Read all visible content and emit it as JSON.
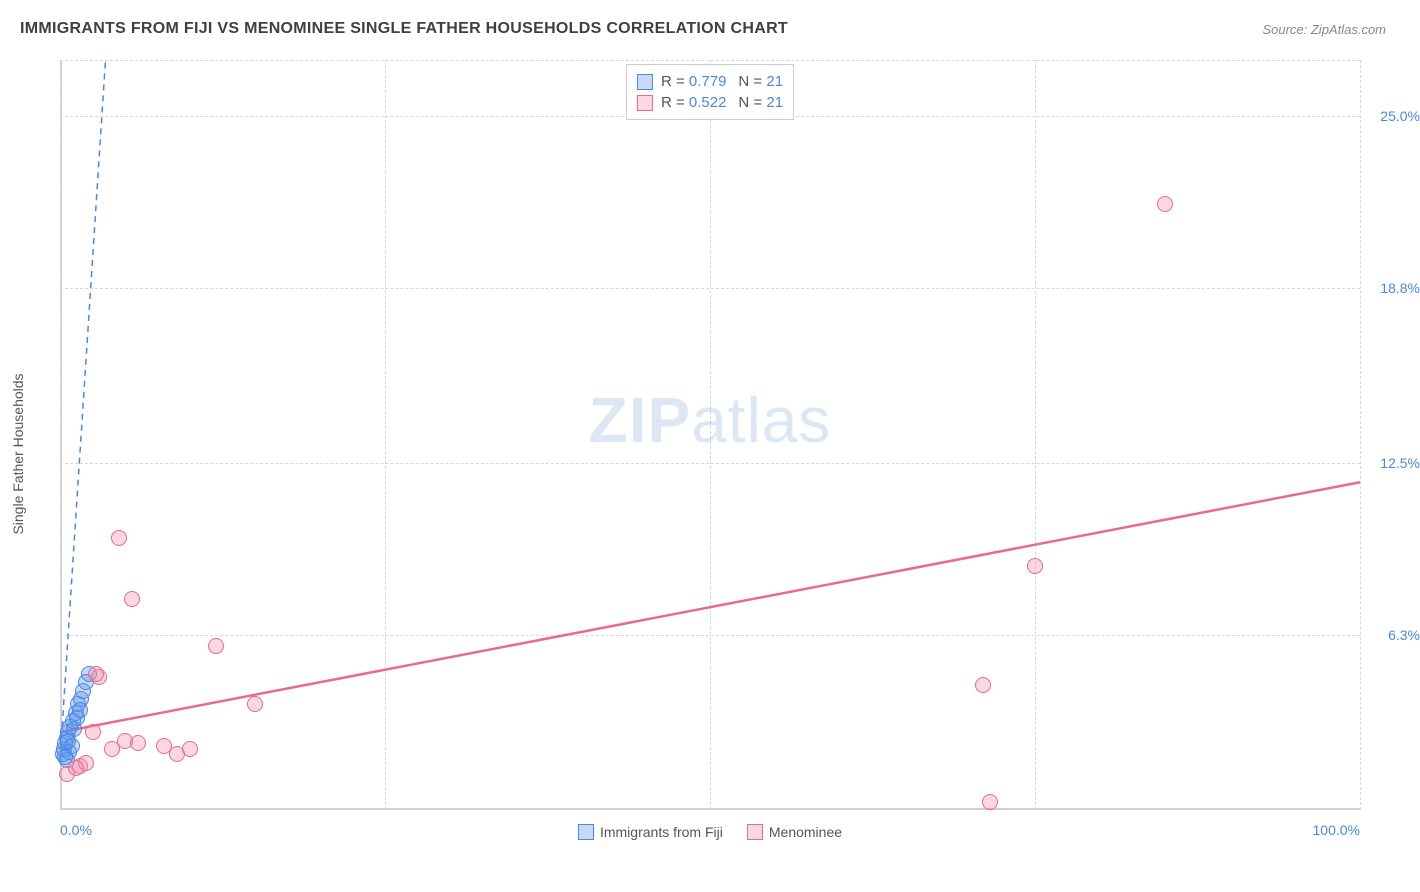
{
  "title": "IMMIGRANTS FROM FIJI VS MENOMINEE SINGLE FATHER HOUSEHOLDS CORRELATION CHART",
  "source": "Source: ZipAtlas.com",
  "y_axis_label": "Single Father Households",
  "watermark_bold": "ZIP",
  "watermark_light": "atlas",
  "colors": {
    "series1_fill": "rgba(93, 148, 232, 0.35)",
    "series1_stroke": "#4a86e8",
    "series2_fill": "rgba(242, 140, 168, 0.35)",
    "series2_stroke": "#e86a8d",
    "axis_label": "#4a86e8",
    "grid": "#d8d8d8",
    "text": "#555555",
    "trend1": "#4a86e8",
    "trend2": "#e86a8d"
  },
  "chart": {
    "type": "scatter",
    "x_domain": [
      0,
      100
    ],
    "y_domain": [
      0,
      27
    ],
    "x_ticks": [
      {
        "v": 0,
        "label": "0.0%",
        "align": "left"
      },
      {
        "v": 100,
        "label": "100.0%",
        "align": "right"
      }
    ],
    "x_gridlines": [
      0,
      25,
      50,
      75,
      100
    ],
    "y_ticks": [
      {
        "v": 6.3,
        "label": "6.3%"
      },
      {
        "v": 12.5,
        "label": "12.5%"
      },
      {
        "v": 18.8,
        "label": "18.8%"
      },
      {
        "v": 25.0,
        "label": "25.0%"
      }
    ],
    "y_gridlines": [
      6.3,
      12.5,
      18.8,
      25.0,
      27
    ],
    "point_radius": 8,
    "series": [
      {
        "id": "fiji",
        "name": "Immigrants from Fiji",
        "fill": "rgba(93, 148, 232, 0.35)",
        "stroke": "#4a86e8",
        "R": "0.779",
        "N": "21",
        "points": [
          [
            0.2,
            2.0
          ],
          [
            0.3,
            2.2
          ],
          [
            0.4,
            2.4
          ],
          [
            0.5,
            2.6
          ],
          [
            0.6,
            2.8
          ],
          [
            0.8,
            3.0
          ],
          [
            1.0,
            3.2
          ],
          [
            1.2,
            3.5
          ],
          [
            1.4,
            3.8
          ],
          [
            1.6,
            4.0
          ],
          [
            1.8,
            4.3
          ],
          [
            2.0,
            4.6
          ],
          [
            2.2,
            4.9
          ],
          [
            0.5,
            1.8
          ],
          [
            0.7,
            2.1
          ],
          [
            0.9,
            2.3
          ],
          [
            1.1,
            2.9
          ],
          [
            1.3,
            3.3
          ],
          [
            1.5,
            3.6
          ],
          [
            0.4,
            1.9
          ],
          [
            0.6,
            2.5
          ]
        ],
        "trend": {
          "x1": 0,
          "y1": 1.8,
          "x2": 3.5,
          "y2": 27,
          "dash": true,
          "w": 1.5
        }
      },
      {
        "id": "menominee",
        "name": "Menominee",
        "fill": "rgba(242, 140, 168, 0.35)",
        "stroke": "#e86a8d",
        "R": "0.522",
        "N": "21",
        "points": [
          [
            0.5,
            1.3
          ],
          [
            1.5,
            1.6
          ],
          [
            2.0,
            1.7
          ],
          [
            3.0,
            4.8
          ],
          [
            4.0,
            2.2
          ],
          [
            5.0,
            2.5
          ],
          [
            6.0,
            2.4
          ],
          [
            8.0,
            2.3
          ],
          [
            9.0,
            2.0
          ],
          [
            10.0,
            2.2
          ],
          [
            12.0,
            5.9
          ],
          [
            15.0,
            3.8
          ],
          [
            4.5,
            9.8
          ],
          [
            5.5,
            7.6
          ],
          [
            2.8,
            4.9
          ],
          [
            71.0,
            4.5
          ],
          [
            71.5,
            0.3
          ],
          [
            75.0,
            8.8
          ],
          [
            85.0,
            21.8
          ],
          [
            1.2,
            1.5
          ],
          [
            2.5,
            2.8
          ]
        ],
        "trend": {
          "x1": 0,
          "y1": 2.8,
          "x2": 100,
          "y2": 11.8,
          "dash": false,
          "w": 2.5
        }
      }
    ]
  },
  "legend_top": {
    "r_prefix": "R = ",
    "n_prefix": "N = "
  }
}
